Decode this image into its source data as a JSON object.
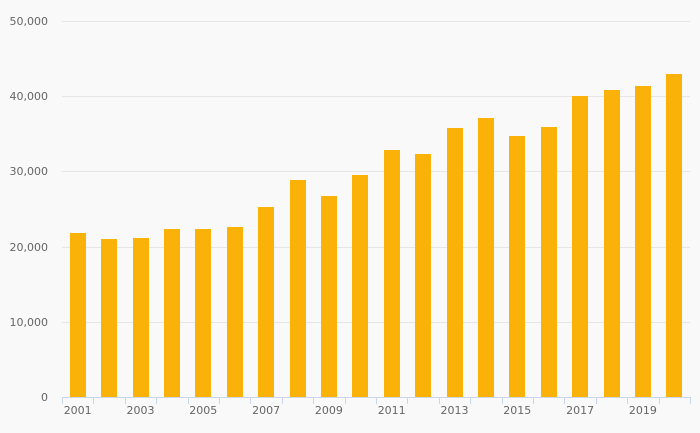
{
  "chart": {
    "background_color": "#f9f9f9",
    "bar_color": "#fab108",
    "gridline_color": "#e6e6e6",
    "axis_color": "#ccd6eb",
    "label_color": "#666666"
  },
  "chart_data": {
    "type": "bar",
    "title": "",
    "xlabel": "",
    "ylabel": "",
    "categories": [
      "2001",
      "2002",
      "2003",
      "2004",
      "2005",
      "2006",
      "2007",
      "2008",
      "2009",
      "2010",
      "2011",
      "2012",
      "2013",
      "2014",
      "2015",
      "2016",
      "2017",
      "2018",
      "2019",
      "2020"
    ],
    "values": [
      21800,
      21000,
      21100,
      22400,
      22300,
      22600,
      25200,
      28900,
      26700,
      29500,
      32800,
      32300,
      35800,
      37100,
      34700,
      35900,
      40000,
      40800,
      41400,
      43000
    ],
    "ylim": [
      0,
      50000
    ],
    "y_ticks": [
      0,
      10000,
      20000,
      30000,
      40000,
      50000
    ],
    "y_tick_labels": [
      "0",
      "10,000",
      "20,000",
      "30,000",
      "40,000",
      "50,000"
    ],
    "x_tick_labels_shown": [
      "2001",
      "2003",
      "2005",
      "2007",
      "2009",
      "2011",
      "2013",
      "2015",
      "2017",
      "2019"
    ],
    "grid": true,
    "legend": false
  }
}
